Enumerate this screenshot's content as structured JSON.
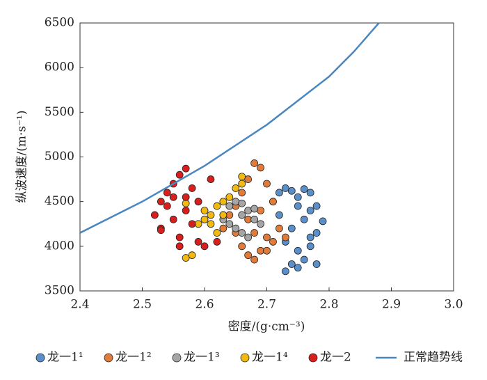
{
  "chart_data": {
    "type": "scatter",
    "xlabel": "密度/(g·cm⁻³)",
    "ylabel": "纵波速度/(m·s⁻¹)",
    "xlim": [
      2.4,
      3.0
    ],
    "ylim": [
      3500,
      6500
    ],
    "xticks": [
      2.4,
      2.5,
      2.6,
      2.7,
      2.8,
      2.9,
      {
        "value": 3,
        "label": "3.0"
      }
    ],
    "yticks": [
      3500,
      4000,
      4500,
      5000,
      5500,
      6000,
      6500
    ],
    "series": [
      {
        "name": "龙一1¹",
        "color": "#5b8fc9",
        "x": [
          2.72,
          2.73,
          2.74,
          2.75,
          2.76,
          2.77,
          2.78,
          2.79,
          2.72,
          2.74,
          2.76,
          2.78,
          2.73,
          2.75,
          2.77,
          2.74,
          2.76,
          2.78,
          2.73,
          2.75,
          2.77,
          2.71,
          2.75,
          2.77
        ],
        "y": [
          4600,
          4650,
          4620,
          4550,
          4640,
          4600,
          4450,
          4280,
          4350,
          4200,
          4300,
          4150,
          4050,
          3950,
          4100,
          3800,
          3850,
          3800,
          3720,
          3760,
          4400,
          4500,
          4450,
          4000
        ]
      },
      {
        "name": "龙一1²",
        "color": "#e07b39",
        "x": [
          2.68,
          2.69,
          2.67,
          2.7,
          2.66,
          2.65,
          2.64,
          2.63,
          2.68,
          2.7,
          2.72,
          2.71,
          2.69,
          2.67,
          2.66,
          2.68,
          2.7,
          2.73,
          2.65,
          2.67,
          2.69,
          2.71
        ],
        "y": [
          4930,
          4880,
          4750,
          4700,
          4600,
          4450,
          4350,
          4200,
          4150,
          4100,
          4200,
          4050,
          3950,
          3900,
          4000,
          3850,
          3950,
          4100,
          4150,
          4300,
          4400,
          4500
        ]
      },
      {
        "name": "龙一1³",
        "color": "#a5a5a5",
        "x": [
          2.63,
          2.64,
          2.65,
          2.66,
          2.67,
          2.68,
          2.65,
          2.66,
          2.67,
          2.64,
          2.66,
          2.68,
          2.69,
          2.63
        ],
        "y": [
          4350,
          4450,
          4500,
          4480,
          4400,
          4300,
          4200,
          4150,
          4100,
          4250,
          4350,
          4420,
          4250,
          4300
        ]
      },
      {
        "name": "龙一1⁴",
        "color": "#f2b90f",
        "x": [
          2.57,
          2.58,
          2.59,
          2.6,
          2.61,
          2.62,
          2.63,
          2.64,
          2.65,
          2.66,
          2.66,
          2.62,
          2.6,
          2.59,
          2.57,
          2.61,
          2.63
        ],
        "y": [
          3870,
          3900,
          4250,
          4300,
          4350,
          4450,
          4500,
          4550,
          4650,
          4780,
          4700,
          4150,
          4400,
          4500,
          4480,
          4250,
          4350
        ]
      },
      {
        "name": "龙一2",
        "color": "#d91e1e",
        "x": [
          2.52,
          2.53,
          2.54,
          2.55,
          2.56,
          2.57,
          2.58,
          2.53,
          2.55,
          2.57,
          2.59,
          2.54,
          2.56,
          2.58,
          2.6,
          2.62,
          2.53,
          2.55,
          2.59,
          2.61,
          2.57,
          2.56
        ],
        "y": [
          4350,
          4500,
          4600,
          4700,
          4800,
          4870,
          4650,
          4200,
          4300,
          4400,
          4500,
          4450,
          4100,
          4250,
          4000,
          4050,
          4180,
          4550,
          4050,
          4750,
          4550,
          4000
        ]
      },
      {
        "name": "正常趋势线",
        "color": "#4a86c0",
        "type": "line",
        "x": [
          2.4,
          2.5,
          2.6,
          2.7,
          2.8,
          2.84,
          2.88
        ],
        "y": [
          4150,
          4500,
          4900,
          5360,
          5900,
          6180,
          6500
        ]
      }
    ]
  }
}
